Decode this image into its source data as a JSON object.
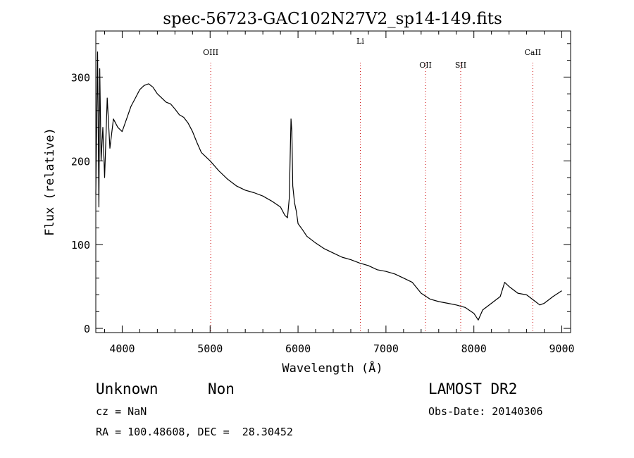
{
  "chart_data": {
    "type": "line",
    "title": "spec-56723-GAC102N27V2_sp14-149.fits",
    "xlabel": "Wavelength (Å)",
    "ylabel": "Flux (relative)",
    "xlim": [
      3700,
      9100
    ],
    "ylim": [
      -5,
      355
    ],
    "xticks": [
      4000,
      5000,
      6000,
      7000,
      8000,
      9000
    ],
    "xtick_labels": [
      "4000",
      "5000",
      "6000",
      "7000",
      "8000",
      "9000"
    ],
    "yticks": [
      0,
      100,
      200,
      300
    ],
    "ytick_labels": [
      "0",
      "100",
      "200",
      "300"
    ],
    "grid": false,
    "lines": [
      {
        "name": "OIII",
        "x": 5007,
        "color": "#cc0000"
      },
      {
        "name": "Li",
        "x": 6708,
        "color": "#cc0000"
      },
      {
        "name": "OII",
        "x": 7450,
        "color": "#cc0000"
      },
      {
        "name": "SII",
        "x": 7850,
        "color": "#cc0000"
      },
      {
        "name": "CaII",
        "x": 8670,
        "color": "#cc0000"
      }
    ],
    "series": [
      {
        "x": [
          3700,
          3720,
          3735,
          3745,
          3760,
          3780,
          3800,
          3830,
          3860,
          3900,
          3950,
          4000,
          4050,
          4100,
          4150,
          4200,
          4250,
          4300,
          4350,
          4400,
          4450,
          4500,
          4550,
          4600,
          4650,
          4700,
          4750,
          4800,
          4850,
          4900,
          4950,
          5000,
          5100,
          5200,
          5300,
          5400,
          5500,
          5600,
          5700,
          5800,
          5850,
          5880,
          5900,
          5920,
          5930,
          5940,
          5960,
          5980,
          6000,
          6050,
          6100,
          6200,
          6300,
          6400,
          6500,
          6600,
          6700,
          6800,
          6900,
          7000,
          7100,
          7200,
          7300,
          7400,
          7500,
          7600,
          7700,
          7800,
          7900,
          8000,
          8050,
          8100,
          8200,
          8300,
          8350,
          8400,
          8500,
          8600,
          8700,
          8750,
          8800,
          8900,
          9000
        ],
        "y": [
          160,
          330,
          145,
          310,
          200,
          240,
          180,
          275,
          215,
          250,
          240,
          235,
          250,
          265,
          275,
          285,
          290,
          292,
          288,
          280,
          275,
          270,
          268,
          262,
          255,
          252,
          245,
          235,
          222,
          210,
          205,
          200,
          188,
          178,
          170,
          165,
          162,
          158,
          152,
          145,
          135,
          132,
          155,
          250,
          235,
          170,
          150,
          140,
          125,
          118,
          110,
          102,
          95,
          90,
          85,
          82,
          78,
          75,
          70,
          68,
          65,
          60,
          55,
          42,
          35,
          32,
          30,
          28,
          25,
          18,
          10,
          22,
          30,
          38,
          55,
          50,
          42,
          40,
          32,
          28,
          30,
          38,
          45
        ]
      }
    ]
  },
  "info": {
    "class": "Unknown",
    "subclass": "Non",
    "survey": "LAMOST DR2",
    "cz": "cz = NaN",
    "obs_date": "Obs-Date: 20140306",
    "coords": "RA = 100.48608, DEC =  28.30452"
  }
}
